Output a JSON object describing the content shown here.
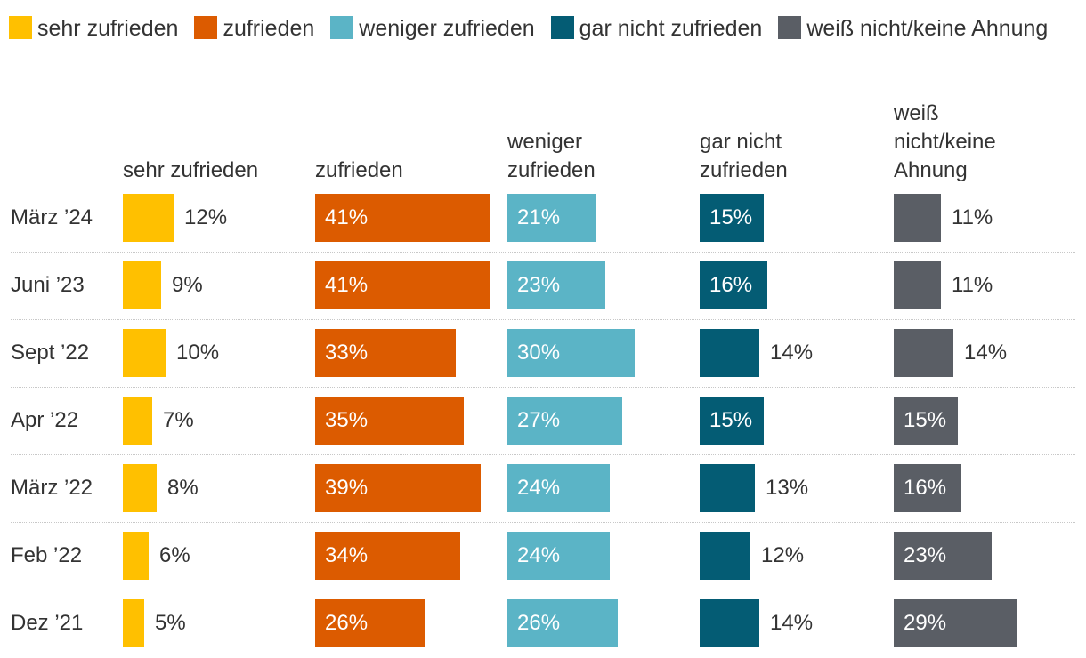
{
  "chart_data": {
    "type": "bar",
    "legend_position": "top",
    "series": [
      {
        "name": "sehr zufrieden",
        "header": "sehr zufrieden",
        "color": "#FFC000",
        "values": [
          12,
          9,
          10,
          7,
          8,
          6,
          5
        ],
        "labels": [
          "12%",
          "9%",
          "10%",
          "7%",
          "8%",
          "6%",
          "5%"
        ]
      },
      {
        "name": "zufrieden",
        "header": "zufrieden",
        "color": "#DC5B00",
        "values": [
          41,
          41,
          33,
          35,
          39,
          34,
          26
        ],
        "labels": [
          "41%",
          "41%",
          "33%",
          "35%",
          "39%",
          "34%",
          "26%"
        ]
      },
      {
        "name": "weniger zufrieden",
        "header": "weniger zufrieden",
        "color": "#5BB4C6",
        "values": [
          21,
          23,
          30,
          27,
          24,
          24,
          26
        ],
        "labels": [
          "21%",
          "23%",
          "30%",
          "27%",
          "24%",
          "24%",
          "26%"
        ]
      },
      {
        "name": "gar nicht zufrieden",
        "header": "gar nicht zufrieden",
        "color": "#045C74",
        "values": [
          15,
          16,
          14,
          15,
          13,
          12,
          14
        ],
        "labels": [
          "15%",
          "16%",
          "14%",
          "15%",
          "13%",
          "12%",
          "14%"
        ]
      },
      {
        "name": "weiß nicht/keine Ahnung",
        "header": "weiß nicht/keine Ahnung",
        "color": "#5A5E65",
        "values": [
          11,
          11,
          14,
          15,
          16,
          23,
          29
        ],
        "labels": [
          "11%",
          "11%",
          "14%",
          "15%",
          "16%",
          "23%",
          "29%"
        ]
      }
    ],
    "categories": [
      "März ’24",
      "Juni ’23",
      "Sept ’22",
      "Apr ’22",
      "März ’22",
      "Feb ’22",
      "Dez ’21"
    ],
    "xlim": [
      0,
      41
    ]
  }
}
